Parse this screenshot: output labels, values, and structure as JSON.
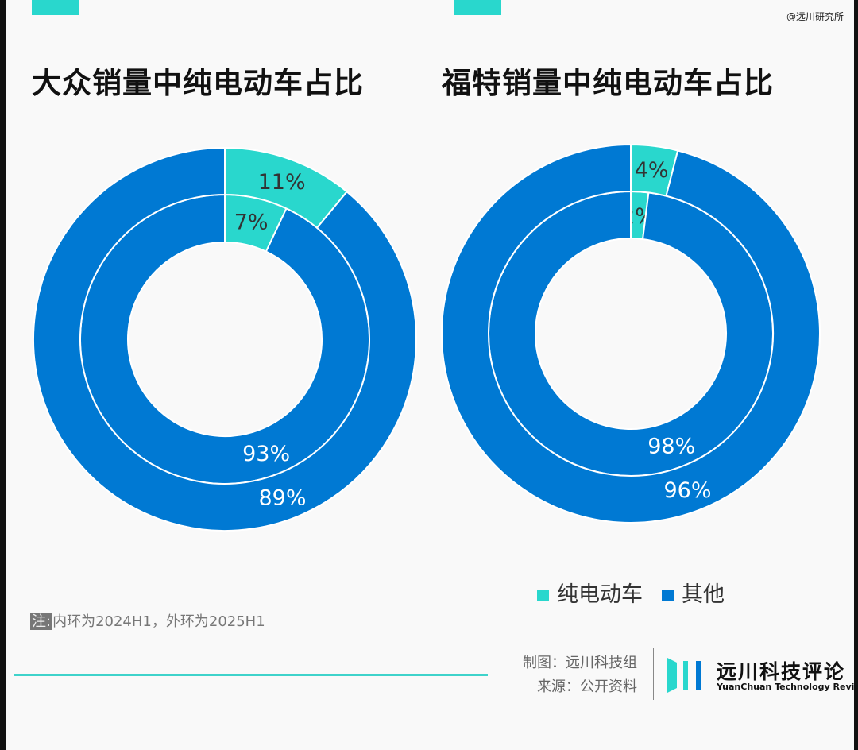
{
  "watermark": "@远川研究所",
  "colors": {
    "ev": "#29d7cd",
    "other": "#0079d3"
  },
  "chart_data": [
    {
      "type": "pie",
      "title": "大众销量中纯电动车占比",
      "categories": [
        "纯电动车",
        "其他"
      ],
      "series": [
        {
          "name": "2024H1 (inner)",
          "values": [
            7,
            93
          ]
        },
        {
          "name": "2025H1 (outer)",
          "values": [
            11,
            89
          ]
        }
      ]
    },
    {
      "type": "pie",
      "title": "福特销量中纯电动车占比",
      "categories": [
        "纯电动车",
        "其他"
      ],
      "series": [
        {
          "name": "2024H1 (inner)",
          "values": [
            2,
            98
          ]
        },
        {
          "name": "2025H1 (outer)",
          "values": [
            4,
            96
          ]
        }
      ]
    }
  ],
  "legend": [
    "纯电动车",
    "其他"
  ],
  "note": {
    "key": "注:",
    "text": "内环为2024H1，外环为2025H1"
  },
  "credit": {
    "made": "制图：远川科技组",
    "source": "来源：公开资料"
  },
  "logo": {
    "cn": "远川科技评论",
    "en": "YuanChuan Technology Review"
  }
}
